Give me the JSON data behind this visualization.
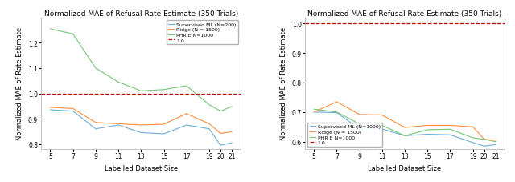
{
  "title": "Normalized MAE of Refusal Rate Estimate (350 Trials)",
  "xlabel": "Labelled Dataset Size",
  "ylabel": "Normalized MAE of Rate Estimate",
  "x": [
    5,
    7,
    9,
    11,
    13,
    15,
    17,
    19,
    20,
    21
  ],
  "left": {
    "blue": [
      0.935,
      0.93,
      0.86,
      0.875,
      0.845,
      0.84,
      0.875,
      0.86,
      0.795,
      0.805
    ],
    "orange": [
      0.945,
      0.94,
      0.885,
      0.88,
      0.875,
      0.878,
      0.92,
      0.88,
      0.842,
      0.848
    ],
    "green": [
      1.255,
      1.235,
      1.1,
      1.045,
      1.01,
      1.015,
      1.03,
      0.955,
      0.93,
      0.948
    ],
    "ylim": [
      0.78,
      1.3
    ],
    "yticks": [
      0.8,
      0.9,
      1.0,
      1.1,
      1.2
    ]
  },
  "right": {
    "blue": [
      0.7,
      0.698,
      0.643,
      0.643,
      0.62,
      0.625,
      0.623,
      0.597,
      0.585,
      0.59
    ],
    "orange": [
      0.7,
      0.735,
      0.692,
      0.69,
      0.648,
      0.655,
      0.655,
      0.65,
      0.608,
      0.605
    ],
    "green": [
      0.71,
      0.7,
      0.66,
      0.655,
      0.62,
      0.64,
      0.642,
      0.613,
      0.608,
      0.6
    ],
    "ylim": [
      0.575,
      1.02
    ],
    "yticks": [
      0.6,
      0.7,
      0.8,
      0.9,
      1.0
    ]
  },
  "legend_left": {
    "blue_label": "Supervised ML (N=200)",
    "orange_label": "Ridge (N = 1500)",
    "green_label": "PHR E N=1000",
    "red_label": "1.0"
  },
  "legend_right": {
    "blue_label": "Supervised ML (N=1000)",
    "orange_label": "Ridge (N = 1500)",
    "green_label": "PHR E N=1000",
    "red_label": "1.0"
  },
  "blue_color": "#6BAED6",
  "orange_color": "#FD8D3C",
  "green_color": "#74C476",
  "red_color": "#C00000",
  "fontsize_title": 6.5,
  "fontsize_label": 6.0,
  "fontsize_tick": 5.5,
  "fontsize_legend": 4.5
}
